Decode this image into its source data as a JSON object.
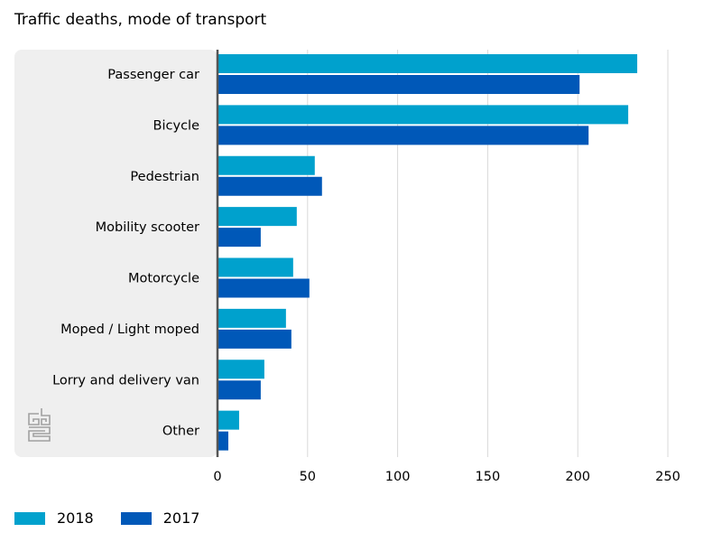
{
  "title": "Traffic deaths, mode of transport",
  "colors": {
    "2018": "#00A1CD",
    "2017": "#0058B8",
    "panel": "#EFEFEF",
    "grid": "#D9D9D9",
    "axis": "#555555"
  },
  "chart_data": {
    "type": "bar",
    "orientation": "horizontal",
    "title": "Traffic deaths, mode of transport",
    "categories": [
      "Passenger car",
      "Bicycle",
      "Pedestrian",
      "Mobility scooter",
      "Motorcycle",
      "Moped / Light moped",
      "Lorry and delivery van",
      "Other"
    ],
    "series": [
      {
        "name": "2018",
        "values": [
          233,
          228,
          54,
          44,
          42,
          38,
          26,
          12
        ]
      },
      {
        "name": "2017",
        "values": [
          201,
          206,
          58,
          24,
          51,
          41,
          24,
          6
        ]
      }
    ],
    "xlim": [
      0,
      250
    ],
    "xticks": [
      "0",
      "50",
      "100",
      "150",
      "200",
      "250"
    ],
    "xlabel": "",
    "ylabel": "",
    "grid": true,
    "legend_position": "bottom-left"
  },
  "legend": {
    "items": [
      "2018",
      "2017"
    ]
  },
  "logo": {
    "name": "cbs-logo"
  }
}
